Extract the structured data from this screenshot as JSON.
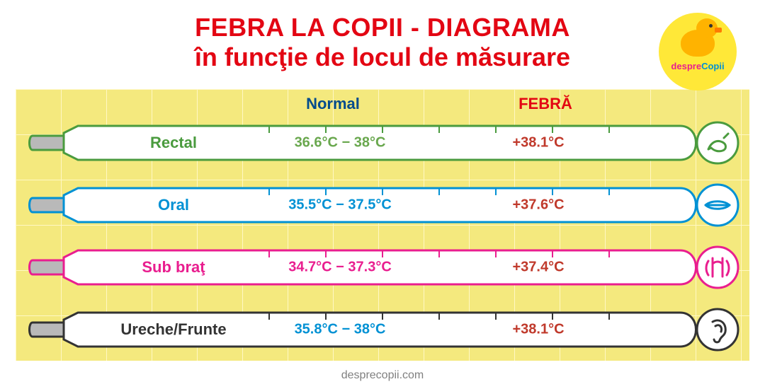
{
  "title_line1": "FEBRA LA COPII  - DIAGRAMA",
  "title_line2": "în funcţie de locul de măsurare",
  "title_color": "#e30613",
  "logo": {
    "text_left": "despre",
    "text_right": "Copii"
  },
  "columns": {
    "normal": {
      "label": "Normal",
      "color": "#004b8d"
    },
    "fever": {
      "label": "FEBRĂ",
      "color": "#e30613"
    }
  },
  "background": {
    "page": "#ffffff",
    "chart": "#f4e97e",
    "grid": "#fff8c4"
  },
  "footer": "desprecopii.com",
  "rows": [
    {
      "label": "Rectal",
      "normal": "36.6°C − 38°C",
      "fever": "+38.1°C",
      "color": "#4a9b3e",
      "normal_color": "#6aa84f",
      "fever_color": "#c0392b",
      "icon": "rectal"
    },
    {
      "label": "Oral",
      "normal": "35.5°C − 37.5°C",
      "fever": "+37.6°C",
      "color": "#0091d4",
      "normal_color": "#0091d4",
      "fever_color": "#c0392b",
      "icon": "mouth"
    },
    {
      "label": "Sub braţ",
      "normal": "34.7°C − 37.3°C",
      "fever": "+37.4°C",
      "color": "#e91e8f",
      "normal_color": "#e91e8f",
      "fever_color": "#c0392b",
      "icon": "armpit"
    },
    {
      "label": "Ureche/Frunte",
      "normal": "35.8°C − 38°C",
      "fever": "+38.1°C",
      "color": "#333333",
      "normal_color": "#0091d4",
      "fever_color": "#c0392b",
      "icon": "ear"
    }
  ],
  "thermometer": {
    "tip_fill": "#b9b9b9",
    "body_fill": "#ffffff",
    "stroke_width": 3,
    "tick_positions": [
      340,
      420,
      500,
      580,
      660,
      740,
      820
    ]
  }
}
